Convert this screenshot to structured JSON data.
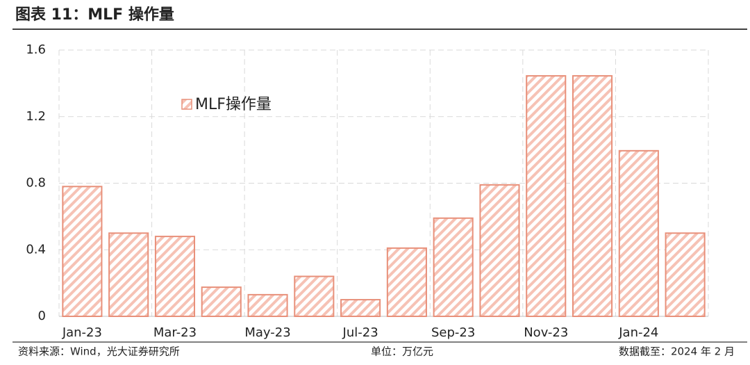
{
  "chart_data": {
    "type": "bar",
    "title": "图表 11：MLF 操作量",
    "categories": [
      "Jan-23",
      null,
      "Mar-23",
      null,
      "May-23",
      null,
      "Jul-23",
      null,
      "Sep-23",
      null,
      "Nov-23",
      null,
      "Jan-24",
      null
    ],
    "series": [
      {
        "name": "MLF操作量",
        "color": "#e8907a",
        "values": [
          0.78,
          0.5,
          0.48,
          0.175,
          0.13,
          0.24,
          0.1,
          0.41,
          0.59,
          0.79,
          1.445,
          1.445,
          0.995,
          0.5
        ]
      }
    ],
    "ylim": [
      0,
      1.6
    ],
    "yticks": [
      0,
      0.4,
      0.8,
      1.2,
      1.6
    ],
    "grid": true,
    "source": "资料来源：Wind，光大证券研究所",
    "unit": "单位：万亿元",
    "note": "数据截至：2024 年 2 月"
  }
}
